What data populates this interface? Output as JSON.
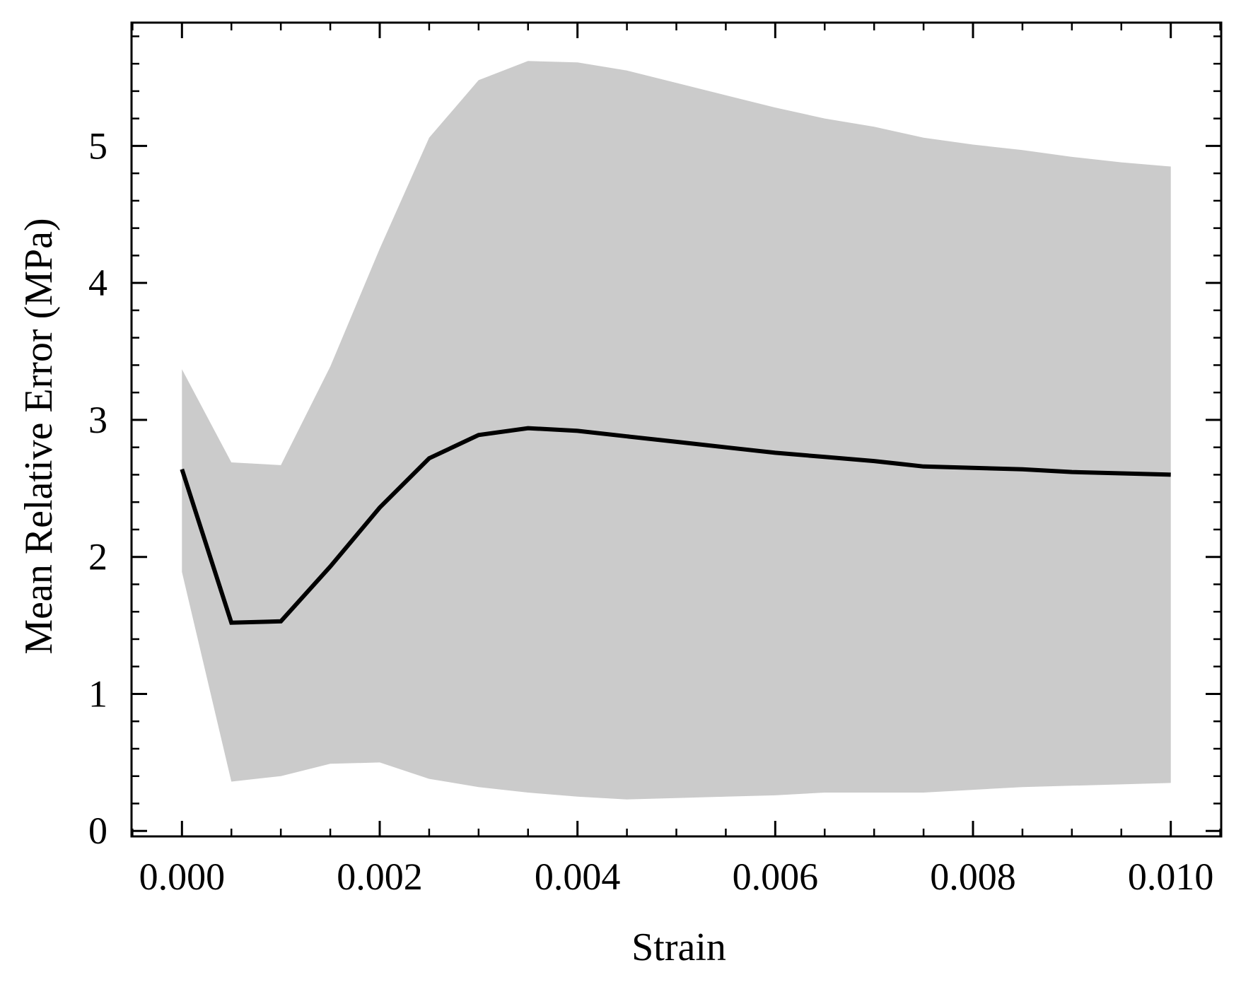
{
  "chart_data": {
    "type": "line",
    "xlabel": "Strain",
    "ylabel": "Mean Relative Error (MPa)",
    "xlim": [
      -0.00051,
      0.01051
    ],
    "ylim": [
      -0.04,
      5.9
    ],
    "x_ticks": [
      0.0,
      0.002,
      0.004,
      0.006,
      0.008,
      0.01
    ],
    "x_tick_labels": [
      "0.000",
      "0.002",
      "0.004",
      "0.006",
      "0.008",
      "0.010"
    ],
    "x_minor_step": 0.0005,
    "y_ticks": [
      0,
      1,
      2,
      3,
      4,
      5
    ],
    "y_tick_labels": [
      "0",
      "1",
      "2",
      "3",
      "4",
      "5"
    ],
    "y_minor_step": 0.2,
    "grid": false,
    "colors": {
      "line": "#000000",
      "band": "#cbcbcb",
      "frame": "#000000"
    },
    "series": [
      {
        "x": [
          0.0,
          0.0005,
          0.001,
          0.0015,
          0.002,
          0.0025,
          0.003,
          0.0035,
          0.004,
          0.0045,
          0.005,
          0.0055,
          0.006,
          0.0065,
          0.007,
          0.0075,
          0.008,
          0.0085,
          0.009,
          0.0095,
          0.01
        ],
        "values": [
          2.64,
          1.52,
          1.53,
          1.93,
          2.36,
          2.72,
          2.89,
          2.94,
          2.92,
          2.88,
          2.84,
          2.8,
          2.76,
          2.73,
          2.7,
          2.66,
          2.65,
          2.64,
          2.62,
          2.61,
          2.6
        ],
        "lower": [
          1.89,
          0.36,
          0.4,
          0.49,
          0.5,
          0.38,
          0.32,
          0.28,
          0.25,
          0.23,
          0.24,
          0.25,
          0.26,
          0.28,
          0.28,
          0.28,
          0.3,
          0.32,
          0.33,
          0.34,
          0.35
        ],
        "upper": [
          3.37,
          2.69,
          2.67,
          3.39,
          4.25,
          5.06,
          5.48,
          5.62,
          5.61,
          5.55,
          5.46,
          5.37,
          5.28,
          5.2,
          5.14,
          5.06,
          5.01,
          4.97,
          4.92,
          4.88,
          4.85
        ]
      }
    ]
  }
}
